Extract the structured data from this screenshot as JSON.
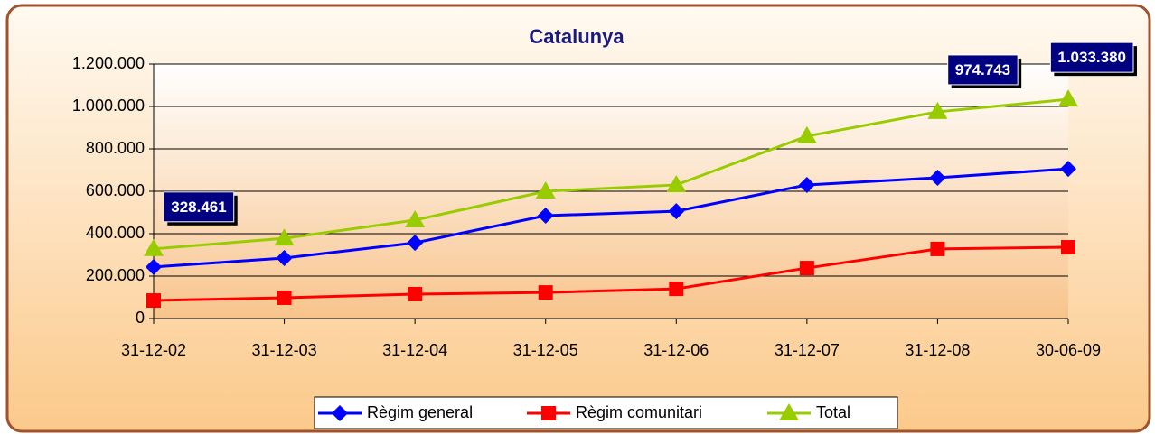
{
  "chart_data": {
    "type": "line",
    "title": "Catalunya",
    "categories": [
      "31-12-02",
      "31-12-03",
      "31-12-04",
      "31-12-05",
      "31-12-06",
      "31-12-07",
      "31-12-08",
      "30-06-09"
    ],
    "series": [
      {
        "name": "Règim general",
        "color": "#0000ff",
        "marker": "diamond",
        "values": [
          243000,
          285000,
          357000,
          485000,
          506000,
          630000,
          664000,
          706000
        ]
      },
      {
        "name": "Règim comunitari",
        "color": "#ff0000",
        "marker": "square",
        "values": [
          85000,
          98000,
          115000,
          123000,
          140000,
          238000,
          328000,
          336000
        ]
      },
      {
        "name": "Total",
        "color": "#99cc00",
        "marker": "triangle",
        "values": [
          328461,
          378000,
          464000,
          600000,
          630000,
          860000,
          974743,
          1033380
        ],
        "value_labels": [
          "328.461",
          null,
          null,
          null,
          null,
          null,
          "974.743",
          "1.033.380"
        ]
      }
    ],
    "ylim": [
      0,
      1200000
    ],
    "yticks": [
      {
        "value": 0,
        "label": "0"
      },
      {
        "value": 200000,
        "label": "200.000"
      },
      {
        "value": 400000,
        "label": "400.000"
      },
      {
        "value": 600000,
        "label": "600.000"
      },
      {
        "value": 800000,
        "label": "800.000"
      },
      {
        "value": 1000000,
        "label": "1.000.000"
      },
      {
        "value": 1200000,
        "label": "1.200.000"
      }
    ],
    "grid": true,
    "legend": "bottom"
  }
}
